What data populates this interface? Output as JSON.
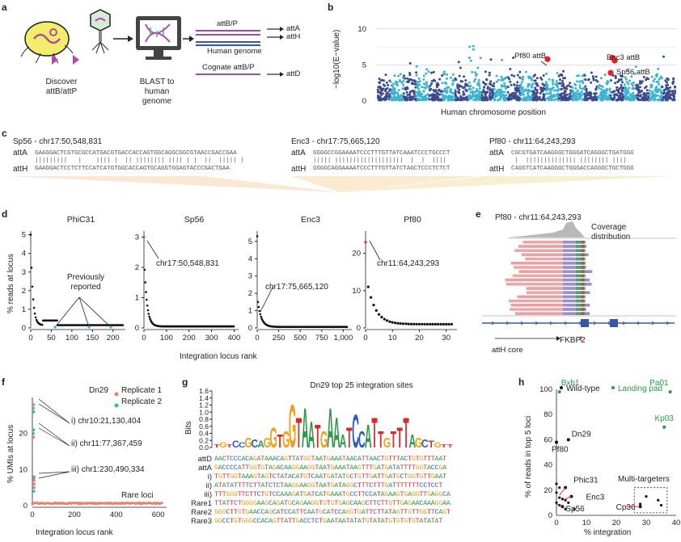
{
  "panels": {
    "a": "a",
    "b": "b",
    "c": "c",
    "d": "d",
    "e": "e",
    "f": "f",
    "g": "g",
    "h": "h"
  },
  "a": {
    "discover": "Discover attB/attP",
    "blast": "BLAST to human genome",
    "attBP": "attB/P",
    "human_genome": "Human genome",
    "attA": "attA",
    "attH": "attH",
    "cognate": "Cognate attB/P",
    "attD": "attD"
  },
  "b": {
    "ylabel": "−log10(E−value)",
    "xlabel": "Human chromosome position",
    "yticks": [
      "0",
      "5",
      "10"
    ],
    "labels": {
      "pf80": "Pf80 attB",
      "enc3": "Enc3 attB",
      "sp56": "Sp56 attB"
    },
    "colors": {
      "dark": "#3b4a8c",
      "light": "#3bb4d0",
      "highlight": "#e0202a"
    }
  },
  "c": {
    "blocks": [
      {
        "title": "Sp56 - chr17:50,548,831",
        "attA": "GAAGGACTCGTGCGCCATGACGTGACCACCAGTGGCAGGCGGCGTAACCGACCGAA",
        "attH": "GAAGGACTCCTCTTCCATCATGTGGCACCAGTGCAGGTGGAGTACCCGACTGAA"
      },
      {
        "title": "Enc3 - chr17:75,665,120",
        "attA": "GGGGCCGGAAAATCCCTTTGTTATCAAATCCCTGCCCT",
        "attH": "GGGGCAGGAAAATCCCTTTGTTATCTAGCTCCCTCTCT"
      },
      {
        "title": "Pf80 - chr11:64,243,293",
        "attA": "CGCGTGATCAAGGGCTGGGATCAGGGCTGATGGG",
        "attH": "CAGGTCATCAAGGGCTGGGACCAGGGCTGCTGGG"
      }
    ],
    "attA": "attA",
    "attH": "attH"
  },
  "d": {
    "ylabel": "% reads at locus",
    "xlabel": "Integration locus rank",
    "previously": "Previously reported",
    "plots": [
      {
        "title": "PhiC31",
        "yticks": [
          "0",
          "1",
          "2",
          "3",
          "4",
          "5"
        ],
        "xticks": [
          "0",
          "50",
          "100",
          "150",
          "200"
        ]
      },
      {
        "title": "Sp56",
        "yticks": [
          "0",
          "1",
          "2",
          "3"
        ],
        "xticks": [
          "0",
          "100",
          "200",
          "300",
          "400"
        ],
        "ann": "chr17:50,548,831"
      },
      {
        "title": "Enc3",
        "yticks": [
          "0",
          "1",
          "2",
          "3",
          "4",
          "5"
        ],
        "xticks": [
          "0",
          "250",
          "500",
          "750",
          "1,000"
        ],
        "ann": "chr17:75,665,120"
      },
      {
        "title": "Pf80",
        "yticks": [
          "0",
          "10",
          "20"
        ],
        "xticks": [
          "0",
          "10",
          "20",
          "30"
        ],
        "ann": "chr11:64,243,293"
      }
    ]
  },
  "e": {
    "title": "Pf80 - chr11:64,243,293",
    "coverage": "Coverage distribution",
    "gene": "FKBP2",
    "core": "attH core"
  },
  "f": {
    "title": "Dn29",
    "ylabel": "% UMIs at locus",
    "xlabel": "Integration locus rank",
    "legend": [
      "Replicate 1",
      "Replicate 2"
    ],
    "ann": [
      "i) chr10:21,130,404",
      "ii) chr11:77,367,459",
      "iii) chr1:230,490,334"
    ],
    "rare": "Rare loci",
    "yticks": [
      "0",
      "10",
      "20"
    ],
    "xticks": [
      "0",
      "200",
      "400",
      "600"
    ],
    "colors": {
      "rep1": "#e8806a",
      "rep2": "#3bb3a8"
    }
  },
  "g": {
    "title": "Dn29 top 25 integration sites",
    "ylabel": "Bits",
    "yticks": [
      "0.0",
      "0.2",
      "0.4",
      "0.6",
      "0.8",
      "1.0",
      "1.2",
      "1.4",
      "1.6"
    ],
    "rows": [
      {
        "label": "attD",
        "seq": "AACTCCCACAGATAAACAGTTATGGTAATGAAATAACATTAACTGTTTACTGTGTTTAAT"
      },
      {
        "label": "attA",
        "seq": "GACCCCATTGGTGTAGACAAGGAAGGTAATGAAATAAGTTTGATGATATTTTGGTACCGA"
      },
      {
        "label": "i)",
        "seq": "TGTTGGTAAAGTAGTCTATACATGTCAATGATATGCTGTTGATTGATGCTGGTGTTGAAT"
      },
      {
        "label": "ii)",
        "seq": "ATATATTTTCTTATCTCTAAGGAAGGTAATGATAGGCTTTCTTTGATTTTTTTCCTCCT"
      },
      {
        "label": "iii)",
        "seq": "TTTGGGTTCTTCTGTCCAAAGATGATCATGAAATGCCTTCCATAGAAGTGAGGTTGAGGCA"
      },
      {
        "label": "Rare1",
        "seq": "TTATTCTGGGGAAGCAGATGCAGAAGGTGTGTGAGCAAGCTTCTTGTTGAGAACAAAGGAA"
      },
      {
        "label": "Rare2",
        "seq": "GGGCTTGTGAACCAGCATCCATTCAATGCATCCAGGTGATTCTTATAGTTGTTGGTTCAGT"
      },
      {
        "label": "Rare3",
        "seq": "GGCCTGTGGGCCACAGTTATTGACCTCTGAATAATATATGTATATGTGTGTGTATATAT"
      }
    ]
  },
  "h": {
    "ylabel": "% of reads in top 5 loci",
    "xlabel": "% integration",
    "legend": [
      "Wild-type",
      "Landing pad"
    ],
    "yticks": [
      "0",
      "20",
      "40",
      "60",
      "80",
      "100"
    ],
    "xticks": [
      "0",
      "10",
      "20",
      "30",
      "40"
    ],
    "multi": "Multi-targeters",
    "points": [
      {
        "label": "Bxb1",
        "x": 1,
        "y": 98,
        "green": true
      },
      {
        "label": "Pa01",
        "x": 38,
        "y": 98,
        "green": true
      },
      {
        "label": "Kp03",
        "x": 36,
        "y": 70,
        "green": true
      },
      {
        "label": "Dn29",
        "x": 4,
        "y": 60,
        "green": false
      },
      {
        "label": "Pf80",
        "x": 0,
        "y": 58,
        "green": false
      },
      {
        "label": "Phic31",
        "x": 3,
        "y": 22,
        "green": false
      },
      {
        "label": "Enc3",
        "x": 5,
        "y": 15,
        "green": false
      },
      {
        "label": "Sp56",
        "x": 2,
        "y": 7,
        "green": false
      },
      {
        "label": "Cp36",
        "x": 28,
        "y": 7,
        "green": false
      }
    ],
    "colors": {
      "wt": "#111111",
      "lp": "#2a9a48"
    }
  }
}
